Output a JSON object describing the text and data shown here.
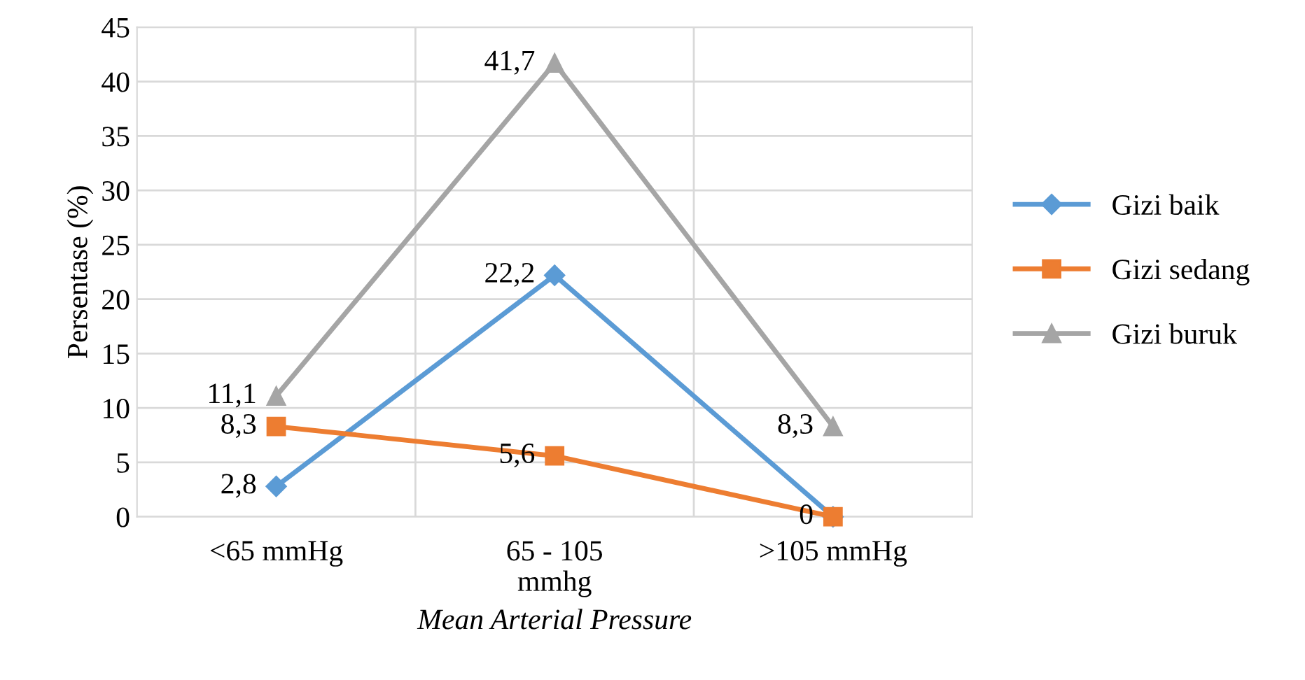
{
  "chart_data": {
    "type": "line",
    "xlabel": "Mean Arterial Pressure",
    "ylabel": "Persentase (%)",
    "categories": [
      "<65 mmHg",
      "65 - 105\nmmhg",
      ">105 mmHg"
    ],
    "series": [
      {
        "name": "Gizi baik",
        "color": "#5b9bd5",
        "marker": "diamond",
        "values": [
          2.8,
          22.2,
          0
        ],
        "value_labels": [
          "2,8",
          "22,2",
          null
        ]
      },
      {
        "name": "Gizi sedang",
        "color": "#ed7d31",
        "marker": "square",
        "values": [
          8.3,
          5.6,
          0
        ],
        "value_labels": [
          "8,3",
          "5,6",
          "0"
        ]
      },
      {
        "name": "Gizi buruk",
        "color": "#a5a5a5",
        "marker": "triangle",
        "values": [
          11.1,
          41.7,
          8.3
        ],
        "value_labels": [
          "11,1",
          "41,7",
          "8,3"
        ]
      }
    ],
    "ylim": [
      0,
      45
    ],
    "yticks": [
      0,
      5,
      10,
      15,
      20,
      25,
      30,
      35,
      40,
      45
    ],
    "grid": true,
    "legend": "right",
    "line_style": "solid"
  }
}
